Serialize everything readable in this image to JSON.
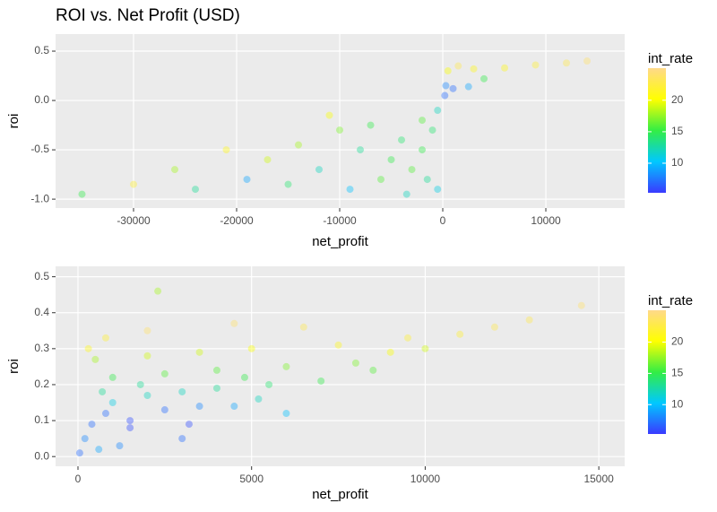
{
  "chart_data": [
    {
      "type": "scatter",
      "title": "ROI vs. Net Profit (USD)",
      "x_label": "net_profit",
      "y_label": "roi",
      "xlim": [
        -37565,
        17650
      ],
      "ylim": [
        -1.09,
        0.673
      ],
      "xticks": [
        -30000,
        -20000,
        -10000,
        0,
        10000
      ],
      "yticks": [
        {
          "value": -1,
          "label": "-1.0"
        },
        -0.5,
        {
          "value": 0,
          "label": "0.0"
        },
        0.5
      ],
      "grid": true,
      "x": [
        500,
        1500,
        3000,
        6000,
        9000,
        12000,
        14000,
        300,
        1000,
        2500,
        4000,
        200,
        -500,
        -1000,
        -2000,
        -1500,
        -500,
        -3000,
        -4000,
        -5000,
        -6000,
        -8000,
        -9000,
        -10000,
        -12000,
        -14000,
        -15000,
        -17000,
        -19000,
        -21000,
        -24000,
        -26000,
        -30000,
        -35000,
        -2000,
        -3500,
        -7000,
        -11000
      ],
      "values": [
        0.3,
        0.35,
        0.32,
        0.33,
        0.36,
        0.38,
        0.4,
        0.15,
        0.12,
        0.14,
        0.22,
        0.05,
        -0.1,
        -0.3,
        -0.5,
        -0.8,
        -0.9,
        -0.7,
        -0.4,
        -0.6,
        -0.8,
        -0.5,
        -0.9,
        -0.3,
        -0.7,
        -0.45,
        -0.85,
        -0.6,
        -0.8,
        -0.5,
        -0.9,
        -0.7,
        -0.85,
        -0.95,
        -0.2,
        -0.95,
        -0.25,
        -0.15
      ],
      "int_rate": [
        20,
        23,
        21,
        21,
        22,
        23,
        24,
        8,
        7,
        9,
        15,
        7,
        12,
        14,
        15,
        13,
        11,
        16,
        14,
        15,
        16,
        13,
        10,
        17,
        12,
        18,
        14,
        19,
        9,
        21,
        13,
        18,
        22,
        15,
        16,
        12,
        15,
        20
      ],
      "colorbar": {
        "title": "int_rate",
        "lim": [
          5.3,
          25.1
        ],
        "ticks": [
          10,
          15,
          20
        ],
        "colors": [
          "#3a3aff",
          "#00c8ff",
          "#33ee44",
          "#ffff00",
          "#ffd98a"
        ]
      }
    },
    {
      "type": "scatter",
      "x_label": "net_profit",
      "y_label": "roi",
      "xlim": [
        -645,
        15745
      ],
      "ylim": [
        -0.027,
        0.529
      ],
      "xticks": [
        0,
        5000,
        10000,
        15000
      ],
      "yticks": [
        {
          "value": 0,
          "label": "0.0"
        },
        0.1,
        0.2,
        0.3,
        0.4,
        0.5
      ],
      "grid": true,
      "x": [
        50,
        200,
        400,
        800,
        1500,
        2500,
        3500,
        4500,
        1000,
        2000,
        3000,
        4000,
        5500,
        7000,
        1000,
        2500,
        4000,
        6000,
        8000,
        10000,
        500,
        2000,
        3500,
        5000,
        7500,
        9500,
        11000,
        13000,
        14500,
        12000,
        800,
        2000,
        4500,
        6500,
        300,
        1500,
        3000,
        1200,
        600,
        2300,
        9000,
        6000,
        5200,
        3200,
        700,
        1800,
        4800,
        8500
      ],
      "values": [
        0.01,
        0.05,
        0.09,
        0.12,
        0.1,
        0.13,
        0.14,
        0.14,
        0.15,
        0.17,
        0.18,
        0.19,
        0.2,
        0.21,
        0.22,
        0.23,
        0.24,
        0.25,
        0.26,
        0.3,
        0.27,
        0.28,
        0.29,
        0.3,
        0.31,
        0.33,
        0.34,
        0.38,
        0.42,
        0.36,
        0.33,
        0.35,
        0.37,
        0.36,
        0.3,
        0.08,
        0.05,
        0.03,
        0.02,
        0.46,
        0.29,
        0.12,
        0.16,
        0.09,
        0.18,
        0.2,
        0.22,
        0.24
      ],
      "int_rate": [
        7,
        8,
        7,
        7,
        6,
        7,
        8,
        9,
        11,
        12,
        12,
        13,
        14,
        15,
        15,
        16,
        16,
        17,
        17,
        19,
        18,
        19,
        19,
        20,
        21,
        22,
        22,
        23,
        24,
        23,
        22,
        24,
        24,
        23,
        21,
        6,
        7,
        8,
        9,
        18,
        20,
        10,
        12,
        6,
        13,
        13,
        15,
        16
      ],
      "colorbar": {
        "title": "int_rate",
        "lim": [
          5.3,
          25.1
        ],
        "ticks": [
          10,
          15,
          20
        ],
        "colors": [
          "#3a3aff",
          "#00c8ff",
          "#33ee44",
          "#ffff00",
          "#ffd98a"
        ]
      }
    }
  ]
}
